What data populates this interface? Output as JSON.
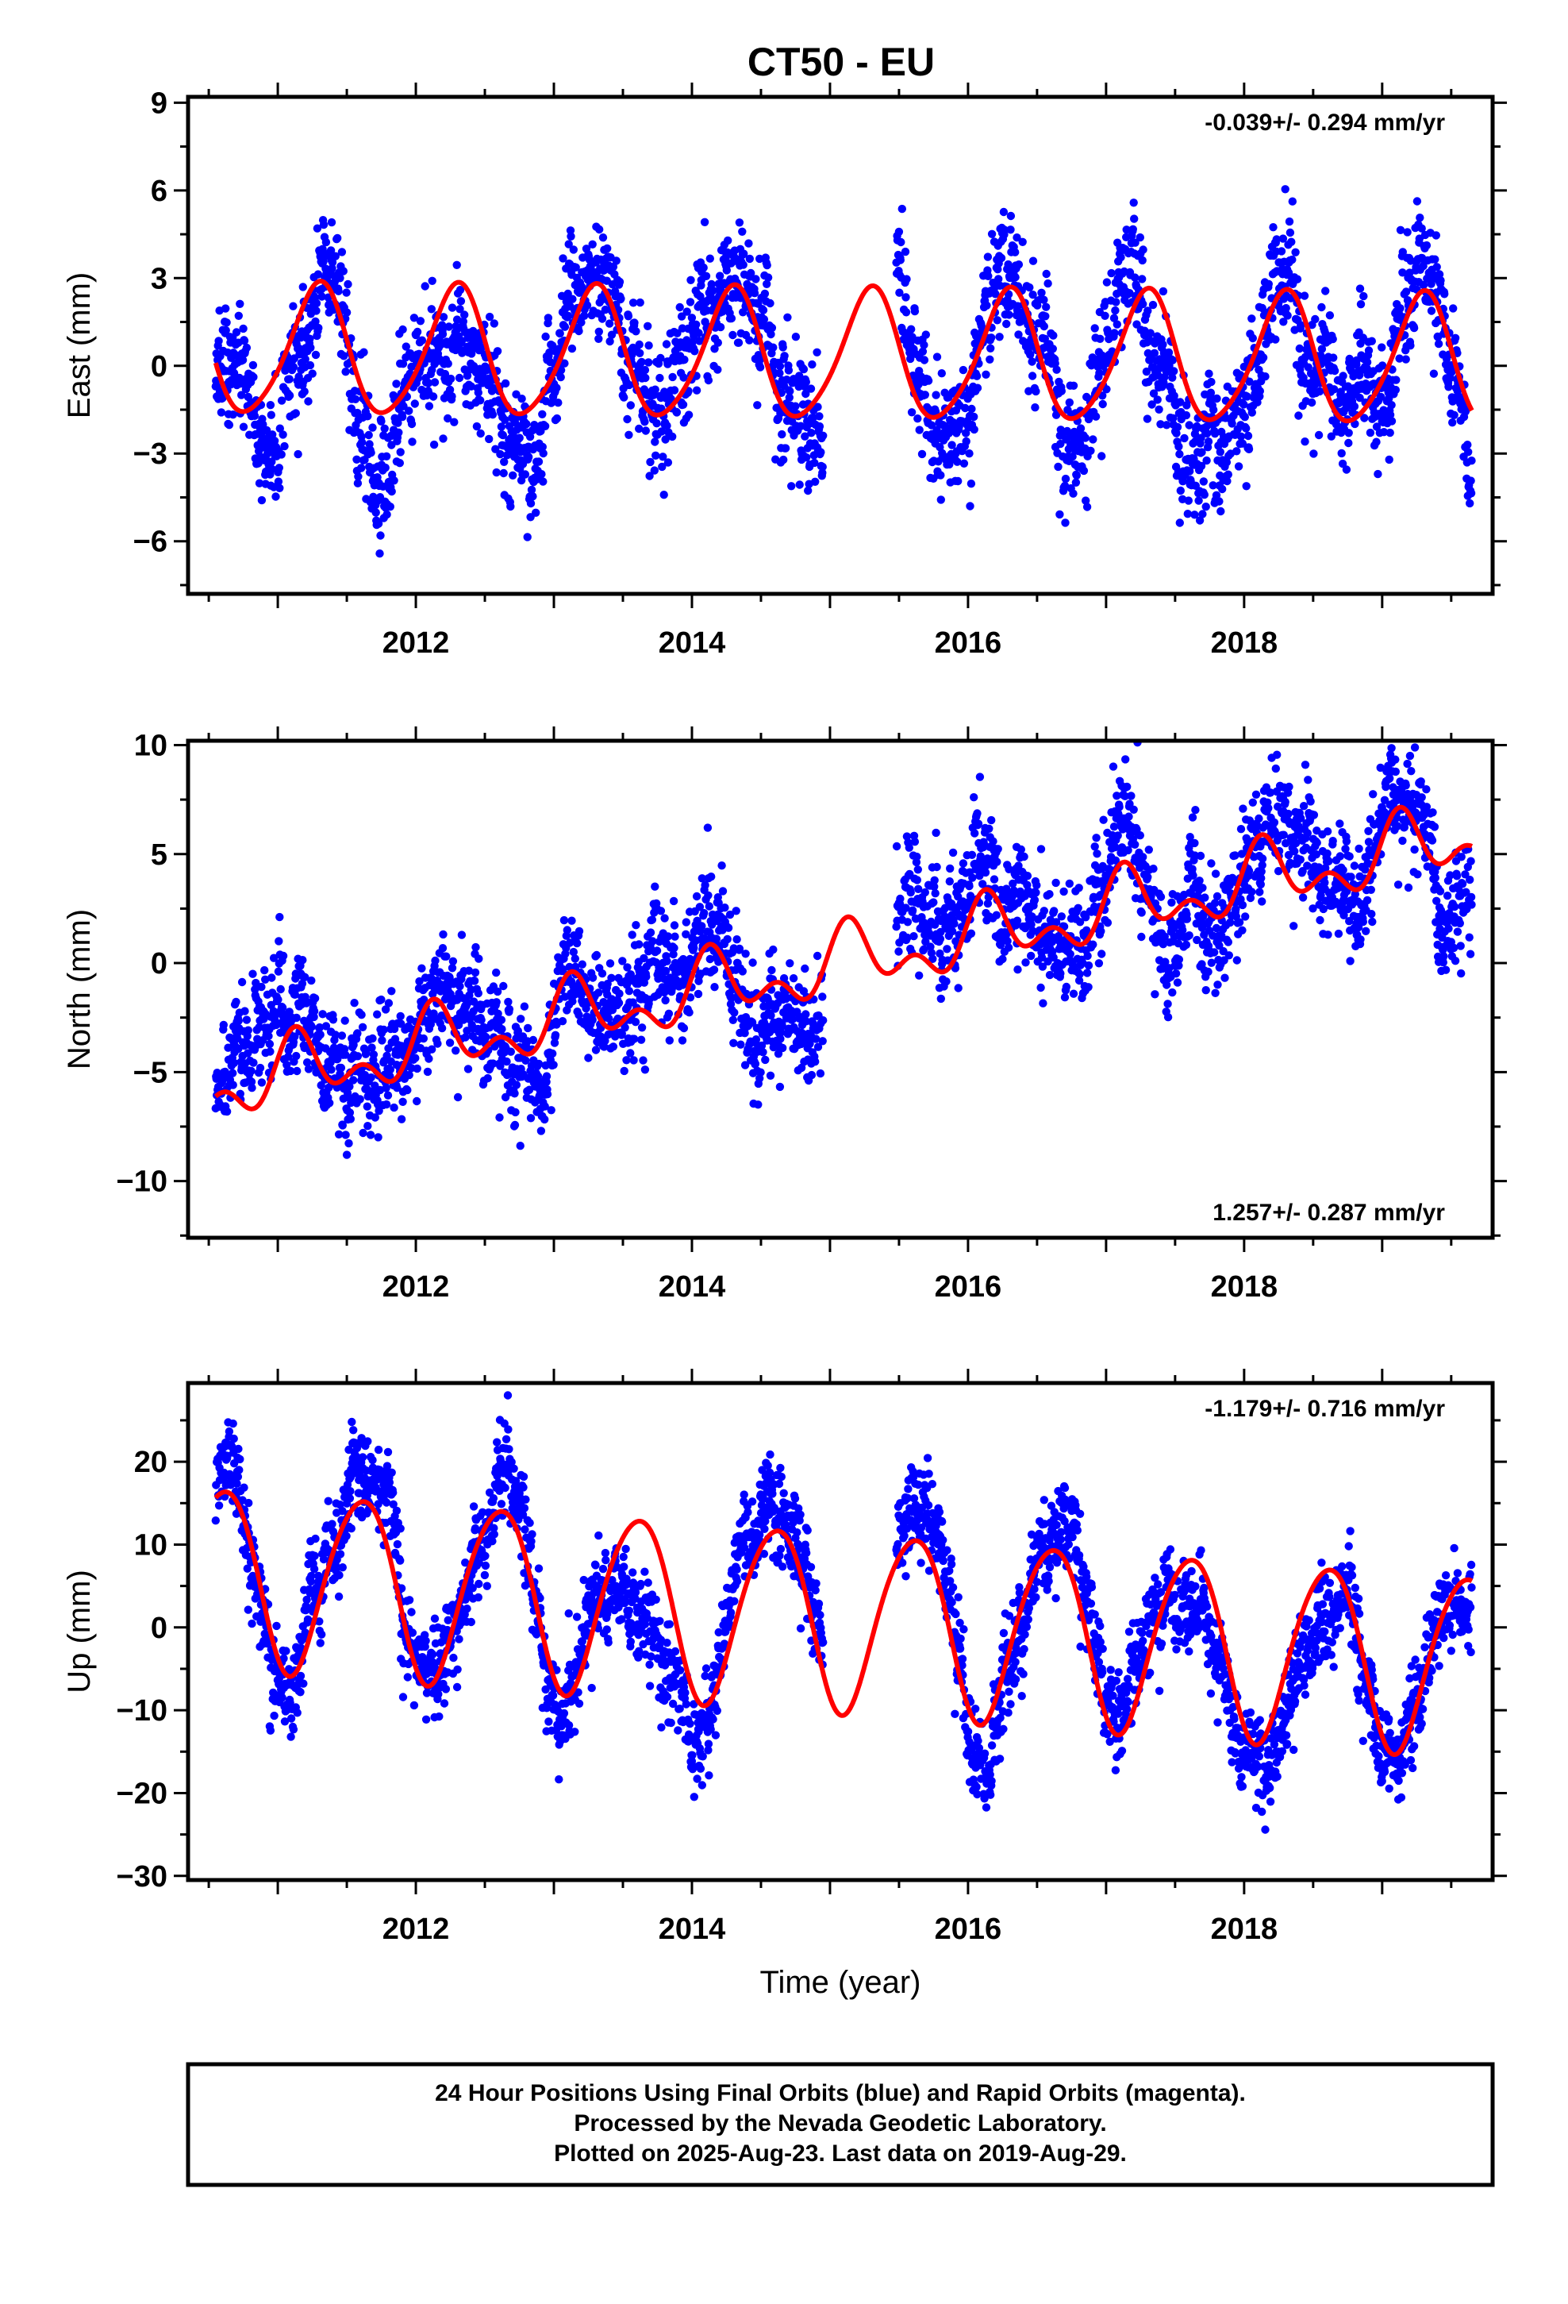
{
  "title": "CT50 - EU",
  "colors": {
    "points": "#0000ff",
    "model": "#ff0000",
    "frame": "#000000"
  },
  "chart_data": [
    {
      "name": "east",
      "type": "scatter",
      "ylabel": "East (mm)",
      "xlabel": "",
      "xlim": [
        2010.35,
        2019.8
      ],
      "ylim": [
        -7.8,
        9.2
      ],
      "yticks": [
        9,
        6,
        3,
        0,
        -3,
        -6
      ],
      "xticks": [
        2012,
        2014,
        2016,
        2018
      ],
      "rate_text": "-0.039+/- 0.294 mm/yr",
      "rate_position": "top-right",
      "data_range": [
        2010.55,
        2019.65
      ],
      "gaps": [
        [
          2014.95,
          2015.48
        ]
      ],
      "model": {
        "mean": 0.3,
        "trend": -0.04,
        "annual_amp": 2.2,
        "annual_peak": 0.29,
        "semiannual_amp": 0.3,
        "semiannual_peak": 0.35,
        "noise_sd": 1.3
      }
    },
    {
      "name": "north",
      "type": "scatter",
      "ylabel": "North (mm)",
      "xlabel": "",
      "xlim": [
        2010.35,
        2019.8
      ],
      "ylim": [
        -12.6,
        10.2
      ],
      "yticks": [
        10,
        5,
        0,
        -5,
        -10
      ],
      "xticks": [
        2012,
        2014,
        2016,
        2018
      ],
      "rate_text": "1.257+/- 0.287 mm/yr",
      "rate_position": "bottom-right",
      "data_range": [
        2010.55,
        2019.65
      ],
      "gaps": [
        [
          2014.95,
          2015.48
        ]
      ],
      "model": {
        "mean": 0.0,
        "trend": 1.257,
        "annual_amp": 1.2,
        "annual_peak": 0.15,
        "semiannual_amp": 0.9,
        "semiannual_peak": 0.12,
        "noise_sd": 1.6
      }
    },
    {
      "name": "up",
      "type": "scatter",
      "ylabel": "Up (mm)",
      "xlabel": "Time (year)",
      "xlim": [
        2010.35,
        2019.8
      ],
      "ylim": [
        -30.5,
        29.5
      ],
      "yticks": [
        20,
        10,
        0,
        -10,
        -20,
        -30
      ],
      "xticks": [
        2012,
        2014,
        2016,
        2018
      ],
      "rate_text": "-1.179+/- 0.716 mm/yr",
      "rate_position": "top-right",
      "data_range": [
        2010.55,
        2019.65
      ],
      "gaps": [
        [
          2014.95,
          2015.48
        ]
      ],
      "model": {
        "mean": 1.0,
        "trend": -1.179,
        "annual_amp": 10.8,
        "annual_peak": 0.6,
        "semiannual_amp": 1.0,
        "semiannual_peak": 0.3,
        "noise_sd": 3.6
      }
    }
  ],
  "footer": {
    "line1": "24 Hour Positions Using Final Orbits (blue) and Rapid Orbits (magenta).",
    "line2": "Processed by the Nevada Geodetic Laboratory.",
    "line3": "Plotted on 2025-Aug-23. Last data on 2019-Aug-29."
  }
}
